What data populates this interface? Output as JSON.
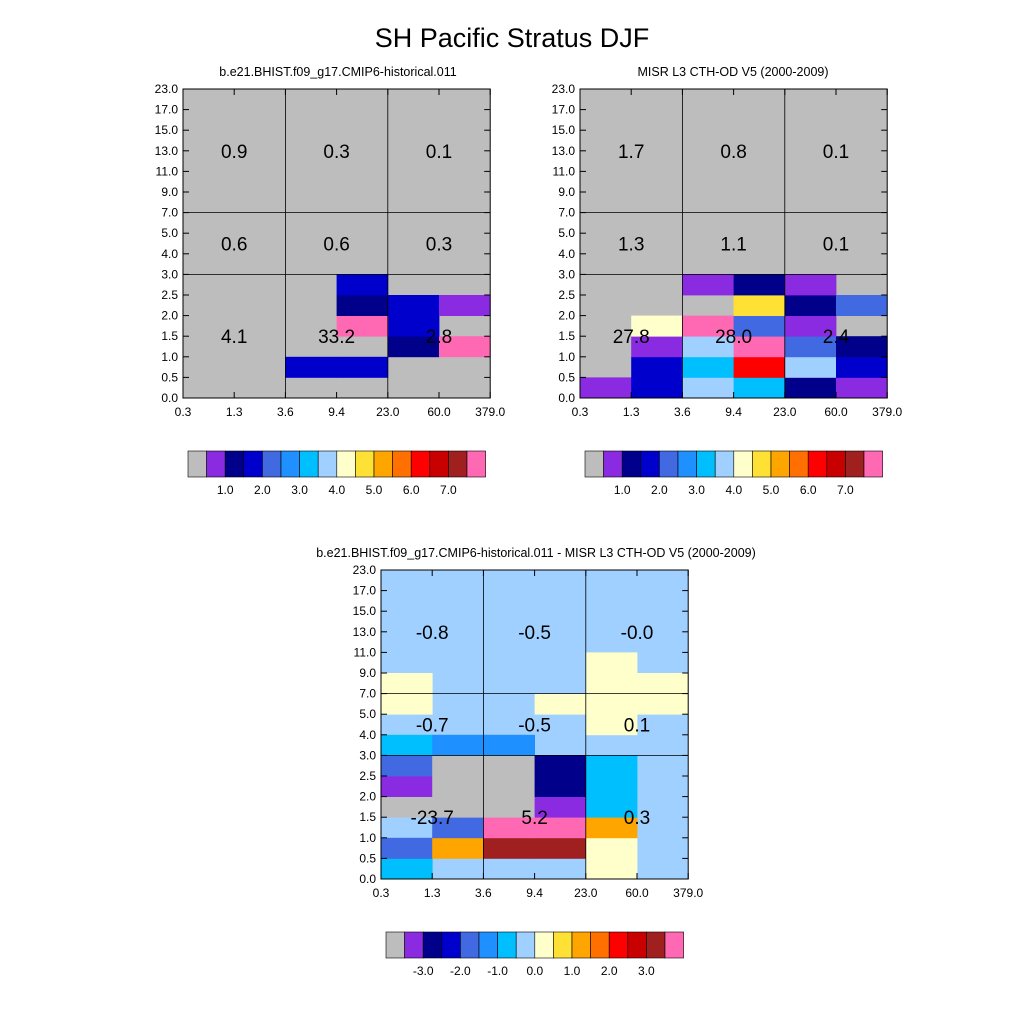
{
  "title": "SH Pacific Stratus DJF",
  "palette_main": [
    "#BDBDBD",
    "#8A2BE2",
    "#00008B",
    "#0000CD",
    "#4169E1",
    "#1E90FF",
    "#00BFFF",
    "#A0D0FF",
    "#FFFFCC",
    "#FFE135",
    "#FFA500",
    "#FF7000",
    "#FF0000",
    "#C80000",
    "#A02020",
    "#FF69B4"
  ],
  "panels": [
    {
      "title": "b.e21.BHIST.f09_g17.CMIP6-historical.011",
      "y_tick_labels": [
        "0.0",
        "0.5",
        "1.0",
        "1.5",
        "2.0",
        "2.5",
        "3.0",
        "4.0",
        "5.0",
        "7.0",
        "9.0",
        "11.0",
        "13.0",
        "15.0",
        "17.0",
        "23.0"
      ],
      "x_tick_labels": [
        "0.3",
        "1.3",
        "3.6",
        "9.4",
        "23.0",
        "60.0",
        "379.0"
      ],
      "colorbar_labels": [
        "1.0",
        "2.0",
        "3.0",
        "4.0",
        "5.0",
        "6.0",
        "7.0"
      ],
      "background_class": 0,
      "cells": [
        [
          1,
          2,
          3
        ],
        [
          1,
          3,
          3
        ],
        [
          2,
          4,
          2
        ],
        [
          2,
          5,
          15
        ],
        [
          3,
          4,
          3
        ],
        [
          3,
          3,
          15
        ],
        [
          4,
          3,
          2
        ],
        [
          4,
          4,
          3
        ],
        [
          4,
          5,
          1
        ],
        [
          5,
          3,
          3
        ]
      ],
      "summary_values": [
        [
          "0.9",
          "0.3",
          "0.1"
        ],
        [
          "0.6",
          "0.6",
          "0.3"
        ],
        [
          "4.1",
          "33.2",
          "2.8"
        ]
      ]
    },
    {
      "title": "MISR L3 CTH-OD V5 (2000-2009)",
      "y_tick_labels": [
        "0.0",
        "0.5",
        "1.0",
        "1.5",
        "2.0",
        "2.5",
        "3.0",
        "4.0",
        "5.0",
        "7.0",
        "9.0",
        "11.0",
        "13.0",
        "15.0",
        "17.0",
        "23.0"
      ],
      "x_tick_labels": [
        "0.3",
        "1.3",
        "3.6",
        "9.4",
        "23.0",
        "60.0",
        "379.0"
      ],
      "colorbar_labels": [
        "1.0",
        "2.0",
        "3.0",
        "4.0",
        "5.0",
        "6.0",
        "7.0"
      ],
      "background_class": 0,
      "cells": [
        [
          0,
          0,
          1
        ],
        [
          0,
          1,
          3
        ],
        [
          0,
          2,
          7
        ],
        [
          0,
          3,
          6
        ],
        [
          0,
          4,
          2
        ],
        [
          0,
          5,
          1
        ],
        [
          1,
          1,
          3
        ],
        [
          1,
          2,
          6
        ],
        [
          1,
          3,
          12
        ],
        [
          1,
          4,
          7
        ],
        [
          1,
          5,
          3
        ],
        [
          2,
          1,
          1
        ],
        [
          2,
          2,
          7
        ],
        [
          2,
          3,
          15
        ],
        [
          2,
          4,
          4
        ],
        [
          2,
          5,
          2
        ],
        [
          3,
          1,
          8
        ],
        [
          3,
          2,
          15
        ],
        [
          3,
          3,
          4
        ],
        [
          3,
          4,
          1
        ],
        [
          4,
          3,
          9
        ],
        [
          4,
          4,
          2
        ],
        [
          4,
          5,
          4
        ],
        [
          5,
          2,
          1
        ],
        [
          5,
          3,
          2
        ],
        [
          5,
          4,
          1
        ]
      ],
      "summary_values": [
        [
          "1.7",
          "0.8",
          "0.1"
        ],
        [
          "1.3",
          "1.1",
          "0.1"
        ],
        [
          "27.8",
          "28.0",
          "2.4"
        ]
      ]
    },
    {
      "title": "b.e21.BHIST.f09_g17.CMIP6-historical.011 - MISR L3 CTH-OD V5 (2000-2009)",
      "y_tick_labels": [
        "0.0",
        "0.5",
        "1.0",
        "1.5",
        "2.0",
        "2.5",
        "3.0",
        "4.0",
        "5.0",
        "7.0",
        "9.0",
        "11.0",
        "13.0",
        "15.0",
        "17.0",
        "23.0"
      ],
      "x_tick_labels": [
        "0.3",
        "1.3",
        "3.6",
        "9.4",
        "23.0",
        "60.0",
        "379.0"
      ],
      "colorbar_labels": [
        "-3.0",
        "-2.0",
        "-1.0",
        "0.0",
        "1.0",
        "2.0",
        "3.0"
      ],
      "background_class": 7,
      "cells": [
        [
          0,
          0,
          6
        ],
        [
          0,
          4,
          8
        ],
        [
          1,
          0,
          4
        ],
        [
          1,
          1,
          10
        ],
        [
          1,
          2,
          14
        ],
        [
          1,
          3,
          14
        ],
        [
          1,
          4,
          8
        ],
        [
          2,
          1,
          4
        ],
        [
          2,
          2,
          15
        ],
        [
          2,
          3,
          15
        ],
        [
          2,
          4,
          10
        ],
        [
          3,
          0,
          0
        ],
        [
          3,
          1,
          0
        ],
        [
          3,
          2,
          0
        ],
        [
          3,
          3,
          1
        ],
        [
          3,
          4,
          6
        ],
        [
          4,
          0,
          1
        ],
        [
          4,
          1,
          0
        ],
        [
          4,
          2,
          0
        ],
        [
          4,
          3,
          2
        ],
        [
          4,
          4,
          6
        ],
        [
          5,
          0,
          4
        ],
        [
          5,
          1,
          0
        ],
        [
          5,
          2,
          0
        ],
        [
          5,
          3,
          2
        ],
        [
          5,
          4,
          6
        ],
        [
          6,
          0,
          6
        ],
        [
          6,
          1,
          5
        ],
        [
          6,
          2,
          5
        ],
        [
          7,
          4,
          8
        ],
        [
          8,
          0,
          8
        ],
        [
          8,
          3,
          8
        ],
        [
          8,
          4,
          8
        ],
        [
          8,
          5,
          8
        ],
        [
          9,
          0,
          8
        ],
        [
          9,
          4,
          8
        ],
        [
          9,
          5,
          8
        ],
        [
          10,
          4,
          8
        ]
      ],
      "summary_values": [
        [
          "-0.8",
          "-0.5",
          "-0.0"
        ],
        [
          "-0.7",
          "-0.5",
          "0.1"
        ],
        [
          "-23.7",
          "5.2",
          "0.3"
        ]
      ]
    }
  ]
}
